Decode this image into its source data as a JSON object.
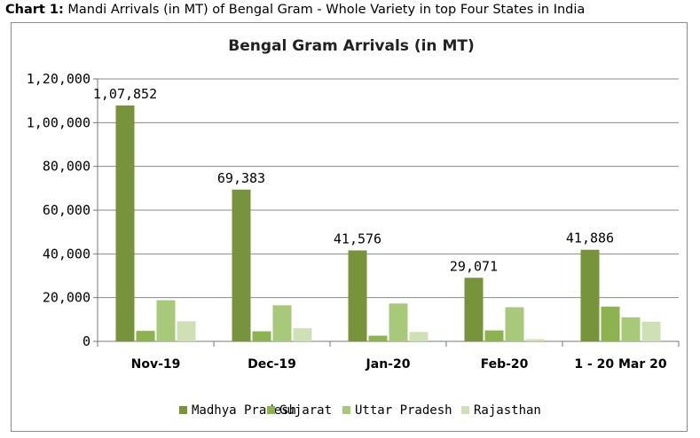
{
  "caption": {
    "prefix": "Chart 1:",
    "text": " Mandi Arrivals (in MT) of Bengal Gram - Whole Variety in top Four States in India"
  },
  "chart_data": {
    "type": "bar",
    "title": "Bengal Gram Arrivals (in MT)",
    "xlabel": "",
    "ylabel": "",
    "categories": [
      "Nov-19",
      "Dec-19",
      "Jan-20",
      "Feb-20",
      "1 - 20 Mar 20"
    ],
    "ylim": [
      0,
      120000
    ],
    "yticks": [
      0,
      20000,
      40000,
      60000,
      80000,
      100000,
      120000
    ],
    "ytick_labels": [
      "0",
      "20,000",
      "40,000",
      "60,000",
      "80,000",
      "1,00,000",
      "1,20,000"
    ],
    "grid": true,
    "legend_position": "bottom",
    "series": [
      {
        "name": "Madhya Pradesh",
        "color": "#77933c",
        "values": [
          107852,
          69383,
          41576,
          29071,
          41886
        ],
        "data_labels": [
          "1,07,852",
          "69,383",
          "41,576",
          "29,071",
          "41,886"
        ]
      },
      {
        "name": "Gujarat",
        "color": "#8db350",
        "values": [
          4800,
          4600,
          2600,
          5000,
          15900
        ]
      },
      {
        "name": "Uttar Pradesh",
        "color": "#a9c97a",
        "values": [
          18800,
          16500,
          17300,
          15600,
          11000
        ]
      },
      {
        "name": "Rajasthan",
        "color": "#cfe0b6",
        "values": [
          9200,
          6000,
          4300,
          1000,
          9000
        ]
      }
    ]
  }
}
